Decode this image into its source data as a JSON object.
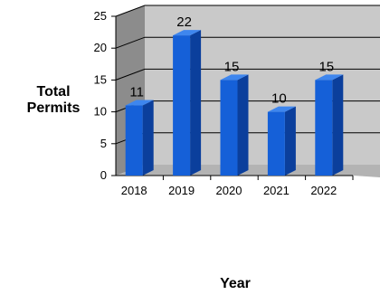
{
  "chart_data": {
    "type": "bar",
    "categories": [
      "2018",
      "2019",
      "2020",
      "2021",
      "2022"
    ],
    "values": [
      11,
      22,
      15,
      10,
      15
    ],
    "xlabel": "Year",
    "ylabel": "Total Permits",
    "ylim": [
      0,
      25
    ],
    "yticks": [
      0,
      5,
      10,
      15,
      20,
      25
    ],
    "grid": true,
    "colors": {
      "bar_front": "#1560d8",
      "bar_side": "#0b3f9c",
      "bar_top": "#3e86ee",
      "back_wall": "#c9c9c9",
      "side_wall": "#8c8c8c",
      "floor": "#b3b3b3"
    }
  }
}
